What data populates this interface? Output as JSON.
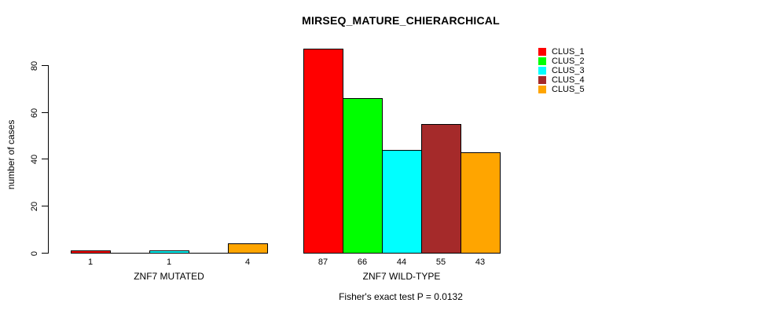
{
  "chart_data": {
    "type": "bar",
    "title": "MIRSEQ_MATURE_CHIERARCHICAL",
    "ylabel": "number of cases",
    "xlabel": "",
    "yticks": [
      0,
      20,
      40,
      60,
      80
    ],
    "ylim": [
      0,
      87
    ],
    "grid": false,
    "legend_position": "top-right",
    "series": [
      {
        "name": "CLUS_1",
        "color": "#FF0000"
      },
      {
        "name": "CLUS_2",
        "color": "#00FF00"
      },
      {
        "name": "CLUS_3",
        "color": "#00FFFF"
      },
      {
        "name": "CLUS_4",
        "color": "#A52A2A"
      },
      {
        "name": "CLUS_5",
        "color": "#FFA500"
      }
    ],
    "groups": [
      {
        "label": "ZNF7 MUTATED",
        "values": [
          1,
          0,
          1,
          0,
          4
        ]
      },
      {
        "label": "ZNF7 WILD-TYPE",
        "values": [
          87,
          66,
          44,
          55,
          43
        ]
      }
    ],
    "bar_value_labels_shown": true,
    "annotation": "Fisher's exact test P = 0.0132"
  }
}
